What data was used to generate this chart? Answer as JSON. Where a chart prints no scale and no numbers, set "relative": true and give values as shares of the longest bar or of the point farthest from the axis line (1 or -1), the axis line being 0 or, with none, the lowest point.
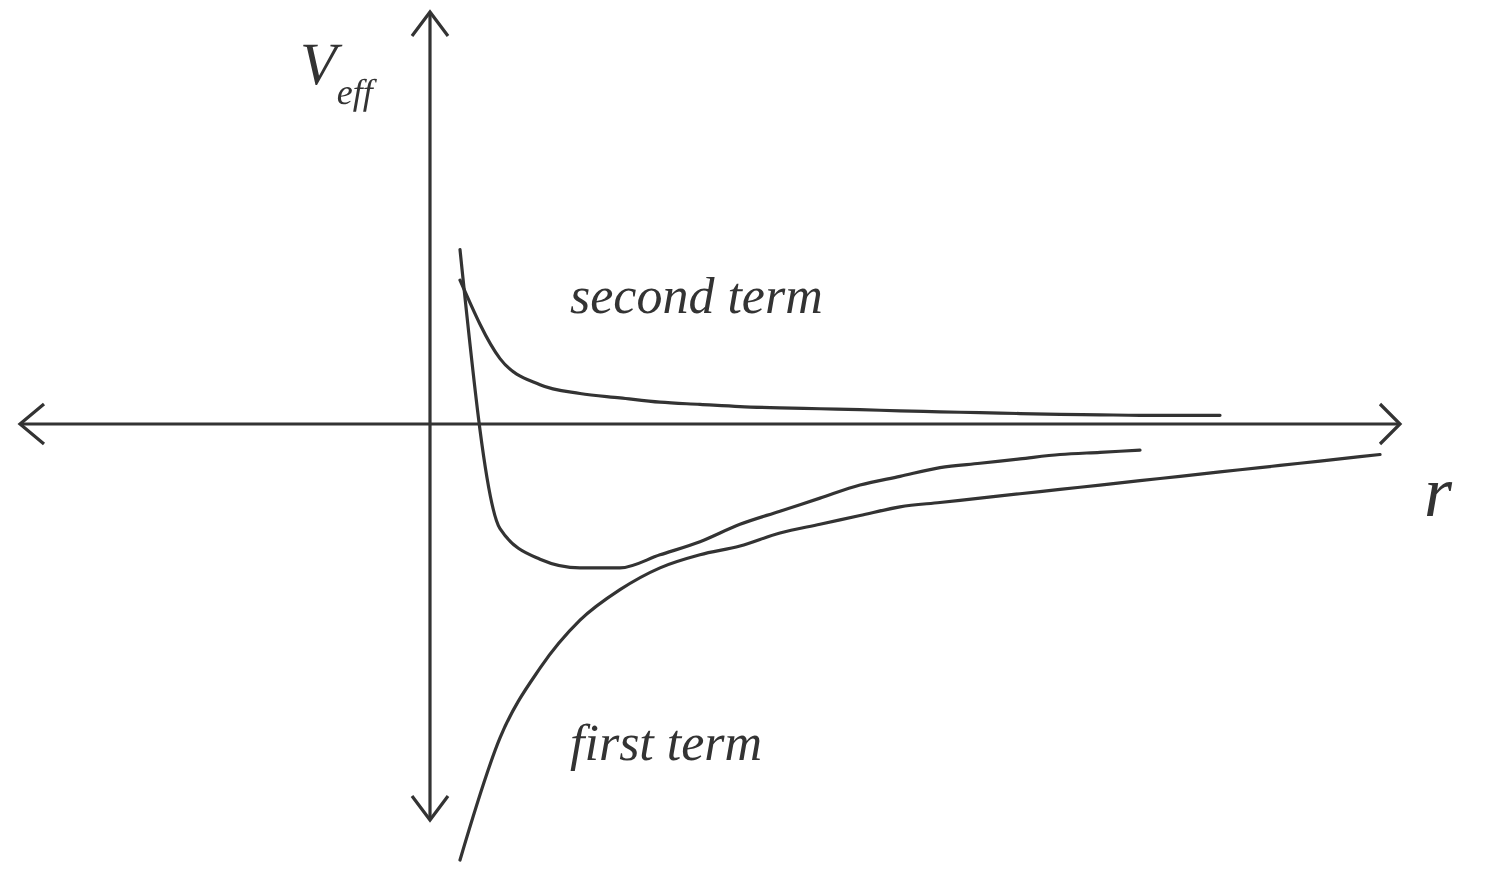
{
  "chart_data": {
    "type": "line",
    "relative": true,
    "xlabel": "r",
    "ylabel": "V$_{eff}$",
    "categories": [
      null,
      null,
      null,
      null,
      null,
      null,
      null,
      null,
      null,
      null,
      null,
      null,
      null,
      null,
      null,
      null,
      null,
      null,
      null,
      null,
      null,
      null,
      null,
      null,
      null,
      null,
      null,
      null,
      null,
      null,
      null,
      null,
      null,
      null,
      null
    ],
    "series": [
      {
        "name": "second term",
        "color": "#333333",
        "values": [
          null,
          null,
          null,
          null,
          null,
          null,
          null,
          null,
          null,
          null,
          null,
          0.33,
          0.15,
          0.09,
          0.07,
          0.06,
          0.05,
          0.045,
          0.04,
          0.037,
          0.035,
          0.033,
          0.03,
          0.028,
          0.026,
          0.024,
          0.022,
          0.021,
          0.02,
          0.02,
          0.02,
          null,
          null,
          null,
          null
        ]
      },
      {
        "name": "first term",
        "color": "#333333",
        "values": [
          null,
          null,
          null,
          null,
          null,
          null,
          null,
          null,
          null,
          null,
          null,
          -1,
          -0.72,
          -0.56,
          -0.45,
          -0.38,
          -0.33,
          -0.3,
          -0.28,
          -0.25,
          -0.23,
          -0.21,
          -0.19,
          -0.18,
          -0.17,
          -0.16,
          -0.15,
          -0.14,
          -0.13,
          -0.12,
          -0.11,
          -0.1,
          -0.09,
          -0.08,
          -0.07
        ]
      },
      {
        "color": "#333333",
        "values": [
          null,
          null,
          null,
          null,
          null,
          null,
          null,
          null,
          null,
          null,
          null,
          0.4,
          -0.24,
          -0.31,
          -0.33,
          -0.33,
          -0.3,
          -0.27,
          -0.23,
          -0.2,
          -0.17,
          -0.14,
          -0.12,
          -0.1,
          -0.09,
          -0.08,
          -0.07,
          -0.065,
          -0.06,
          null,
          null,
          null,
          null,
          null,
          null
        ]
      }
    ]
  }
}
